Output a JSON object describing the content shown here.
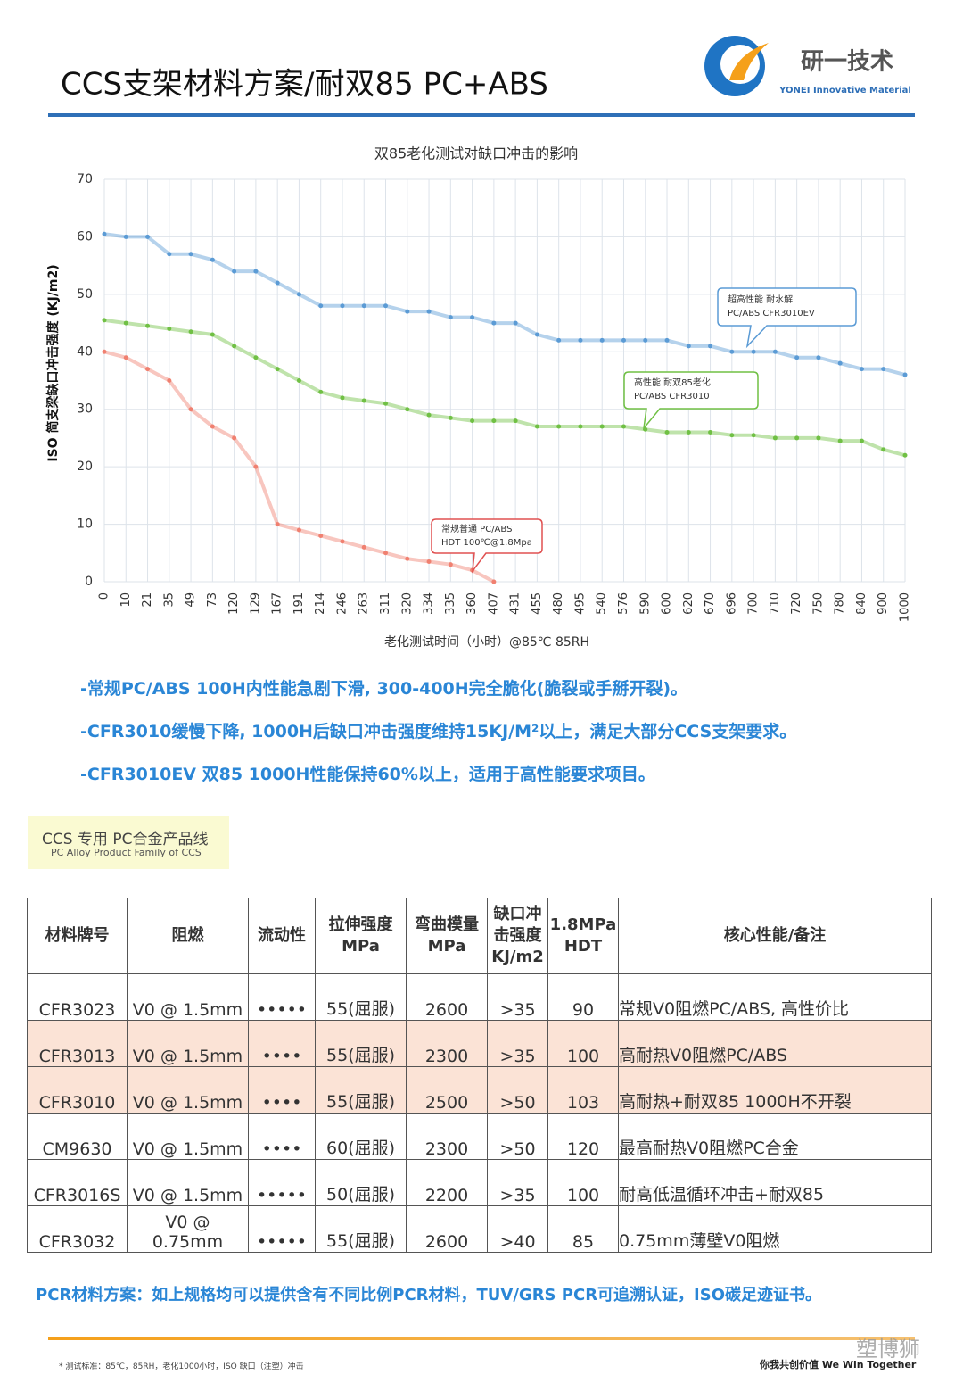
{
  "header": {
    "title": "CCS支架材料方案/耐双85 PC+ABS",
    "logo_name": "研一技术",
    "logo_sub": "YONEI Innovative Material"
  },
  "chart_data": {
    "type": "line",
    "title": "双85老化测试对缺口冲击的影响",
    "y_label": "ISO 简支梁缺口冲击强度 (KJ/m2)",
    "x_label": "老化测试时间（小时）@85℃ 85RH",
    "categories": [
      "0",
      "10",
      "21",
      "35",
      "49",
      "73",
      "120",
      "129",
      "167",
      "191",
      "214",
      "246",
      "263",
      "311",
      "320",
      "334",
      "335",
      "360",
      "407",
      "431",
      "455",
      "480",
      "495",
      "540",
      "576",
      "590",
      "600",
      "620",
      "670",
      "696",
      "700",
      "710",
      "720",
      "750",
      "780",
      "840",
      "900",
      "1000"
    ],
    "ylim": [
      0,
      70
    ],
    "yticks": [
      0,
      10,
      20,
      30,
      40,
      50,
      60,
      70
    ],
    "grid": true,
    "series": [
      {
        "label_lines": [
          "超高性能 耐水解",
          "PC/ABS   CFR3010EV"
        ],
        "color": "#5b9bd5",
        "values": [
          60.5,
          60,
          60,
          57,
          57,
          56,
          54,
          54,
          52,
          50,
          48,
          48,
          48,
          48,
          47,
          47,
          46,
          46,
          45,
          45,
          43,
          42,
          42,
          42,
          42,
          42,
          42,
          41,
          41,
          40,
          40,
          40,
          39,
          39,
          38,
          37,
          37,
          36
        ]
      },
      {
        "label_lines": [
          "高性能 耐双85老化",
          "PC/ABS CFR3010"
        ],
        "color": "#70c044",
        "values": [
          45.5,
          45,
          44.5,
          44,
          43.5,
          43,
          41,
          39,
          37,
          35,
          33,
          32,
          31.5,
          31,
          30,
          29,
          28.5,
          28,
          28,
          28,
          27,
          27,
          27,
          27,
          27,
          26.5,
          26,
          26,
          26,
          25.5,
          25.5,
          25,
          25,
          25,
          24.5,
          24.5,
          23,
          22
        ]
      },
      {
        "label_lines": [
          "常规普通 PC/ABS",
          "HDT 100℃@1.8Mpa"
        ],
        "color": "#f08070",
        "values": [
          40,
          39,
          37,
          35,
          30,
          27,
          25,
          20,
          10,
          9,
          8,
          7,
          6,
          5,
          4,
          3.5,
          3,
          2,
          0,
          null,
          null,
          null,
          null,
          null,
          null,
          null,
          null,
          null,
          null,
          null,
          null,
          null,
          null,
          null,
          null,
          null,
          null,
          null
        ]
      }
    ]
  },
  "notes": [
    "-常规PC/ABS 100H内性能急剧下滑, 300-400H完全脆化(脆裂或手掰开裂)。",
    "-CFR3010缓慢下降, 1000H后缺口冲击强度维持15KJ/M²以上，满足大部分CCS支架要求。",
    "-CFR3010EV 双85 1000H性能保持60%以上，适用于高性能要求项目。"
  ],
  "product_line": {
    "title": "CCS 专用 PC合金产品线",
    "subtitle": "PC Alloy  Product Family of CCS"
  },
  "table": {
    "headers": [
      "材料牌号",
      "阻燃",
      "流动性",
      "拉伸强度\nMPa",
      "弯曲模量\nMPa",
      "缺口冲\n击强度\nKJ/m2",
      "1.8MPa\nHDT",
      "核心性能/备注"
    ],
    "rows": [
      [
        "CFR3023",
        "V0 @ 1.5mm",
        "•••••",
        "55(屈服)",
        "2600",
        ">35",
        "90",
        "常规V0阻燃PC/ABS, 高性价比"
      ],
      [
        "CFR3013",
        "V0 @ 1.5mm",
        "••••",
        "55(屈服)",
        "2300",
        ">35",
        "100",
        "高耐热V0阻燃PC/ABS"
      ],
      [
        "CFR3010",
        "V0 @ 1.5mm",
        "••••",
        "55(屈服)",
        "2500",
        ">50",
        "103",
        "高耐热+耐双85 1000H不开裂"
      ],
      [
        "CM9630",
        "V0 @ 1.5mm",
        "••••",
        "60(屈服)",
        "2300",
        ">50",
        "120",
        "最高耐热V0阻燃PC合金"
      ],
      [
        "CFR3016S",
        "V0 @ 1.5mm",
        "•••••",
        "50(屈服)",
        "2200",
        ">35",
        "100",
        "耐高低温循环冲击+耐双85"
      ],
      [
        "CFR3032",
        "V0 @ 0.75mm",
        "•••••",
        "55(屈服)",
        "2600",
        ">40",
        "85",
        "0.75mm薄壁V0阻燃"
      ]
    ]
  },
  "pcr_note": "PCR材料方案：如上规格均可以提供含有不同比例PCR材料，TUV/GRS PCR可追溯认证，ISO碳足迹证书。",
  "footer": {
    "standard": "* 测试标准：85℃，85RH，老化1000小时，ISO 缺口（注塑）冲击",
    "slogan": "你我共创价值 We Win Together",
    "watermark": "塑博狮"
  }
}
